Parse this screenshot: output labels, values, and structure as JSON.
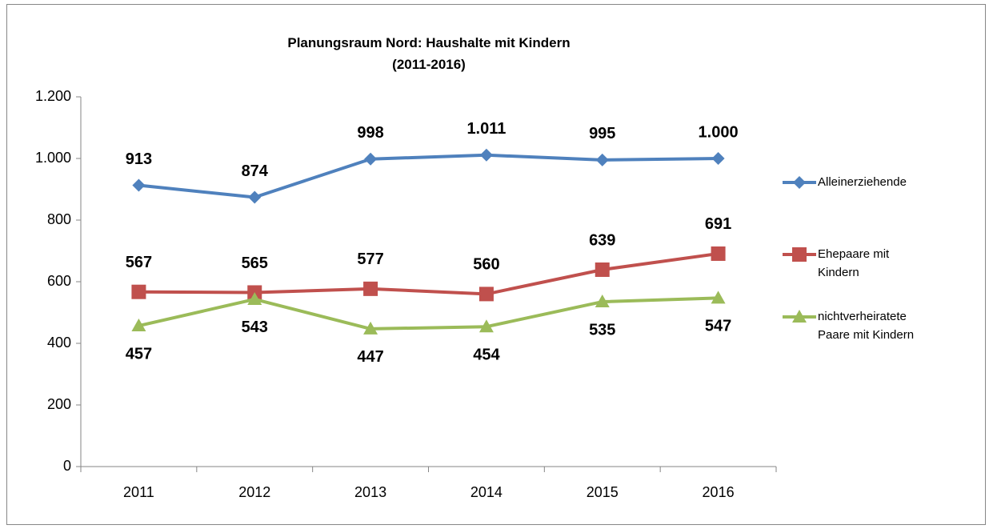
{
  "chart_data": {
    "type": "line",
    "title": "Planungsraum Nord: Haushalte mit Kindern (2011-2016)",
    "categories": [
      "2011",
      "2012",
      "2013",
      "2014",
      "2015",
      "2016"
    ],
    "series": [
      {
        "name": "Alleinerziehende",
        "color": "#4f81bd",
        "marker": "diamond",
        "values": [
          913,
          874,
          998,
          1011,
          995,
          1000
        ],
        "value_labels": [
          "913",
          "874",
          "998",
          "1.011",
          "995",
          "1.000"
        ]
      },
      {
        "name": "Ehepaare mit Kindern",
        "color": "#c0504d",
        "marker": "square",
        "values": [
          567,
          565,
          577,
          560,
          639,
          691
        ]
      },
      {
        "name": "nichtverheiratete Paare mit Kindern",
        "color": "#9bbb59",
        "marker": "triangle",
        "values": [
          457,
          543,
          447,
          454,
          535,
          547
        ]
      }
    ],
    "ylim": [
      0,
      1200
    ],
    "yticks": [
      0,
      200,
      400,
      600,
      800,
      {
        "value": 1000,
        "label": "1.000"
      },
      {
        "value": 1200,
        "label": "1.200"
      }
    ],
    "legend": "right"
  }
}
